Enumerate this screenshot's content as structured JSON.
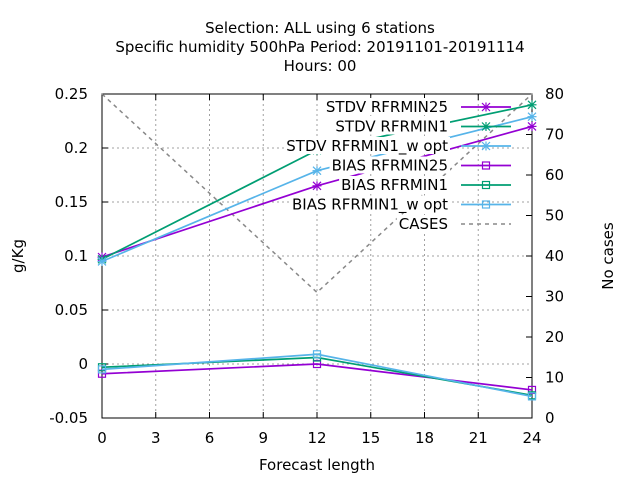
{
  "chart_data": {
    "type": "line",
    "title_lines": [
      "Selection: ALL using     6 stations",
      "Specific humidity 500hPa   Period: 20191101-20191114",
      "Hours:  00"
    ],
    "xlabel": "Forecast length",
    "ylabel": "g/Kg",
    "y2label": "No cases",
    "xlim": [
      0,
      24
    ],
    "ylim": [
      -0.05,
      0.25
    ],
    "y2lim": [
      0,
      80
    ],
    "x_ticks": [
      "0",
      "3",
      "6",
      "9",
      "12",
      "15",
      "18",
      "21",
      "24"
    ],
    "y_ticks": [
      "-0.05",
      "0",
      "0.05",
      "0.1",
      "0.15",
      "0.2",
      "0.25"
    ],
    "y2_ticks": [
      "0",
      "10",
      "20",
      "30",
      "40",
      "50",
      "60",
      "70",
      "80"
    ],
    "grid": true,
    "legend_position": "top-right",
    "series": [
      {
        "name": "STDV RFRMIN25",
        "axis": "y",
        "marker": "star",
        "dashed": false,
        "color": "#9400d3",
        "x": [
          0,
          12,
          24
        ],
        "y": [
          0.099,
          0.165,
          0.22
        ]
      },
      {
        "name": "STDV RFRMIN1",
        "axis": "y",
        "marker": "star",
        "dashed": false,
        "color": "#009e73",
        "x": [
          0,
          12,
          24
        ],
        "y": [
          0.097,
          0.198,
          0.24
        ]
      },
      {
        "name": "STDV RFRMIN1_w opt",
        "axis": "y",
        "marker": "star",
        "dashed": false,
        "color": "#56b4e9",
        "x": [
          0,
          12,
          24
        ],
        "y": [
          0.095,
          0.179,
          0.229
        ]
      },
      {
        "name": "BIAS RFRMIN25",
        "axis": "y",
        "marker": "square",
        "dashed": false,
        "color": "#9400d3",
        "x": [
          0,
          12,
          24
        ],
        "y": [
          -0.009,
          0.0,
          -0.024
        ]
      },
      {
        "name": "BIAS RFRMIN1",
        "axis": "y",
        "marker": "square",
        "dashed": false,
        "color": "#009e73",
        "x": [
          0,
          12,
          24
        ],
        "y": [
          -0.003,
          0.006,
          -0.029
        ]
      },
      {
        "name": "BIAS RFRMIN1_w opt",
        "axis": "y",
        "marker": "square",
        "dashed": false,
        "color": "#56b4e9",
        "x": [
          0,
          12,
          24
        ],
        "y": [
          -0.005,
          0.009,
          -0.03
        ]
      },
      {
        "name": "CASES",
        "axis": "y2",
        "marker": "none",
        "dashed": true,
        "color": "#888888",
        "x": [
          0,
          12,
          24
        ],
        "y": [
          80,
          31,
          80
        ]
      }
    ]
  }
}
